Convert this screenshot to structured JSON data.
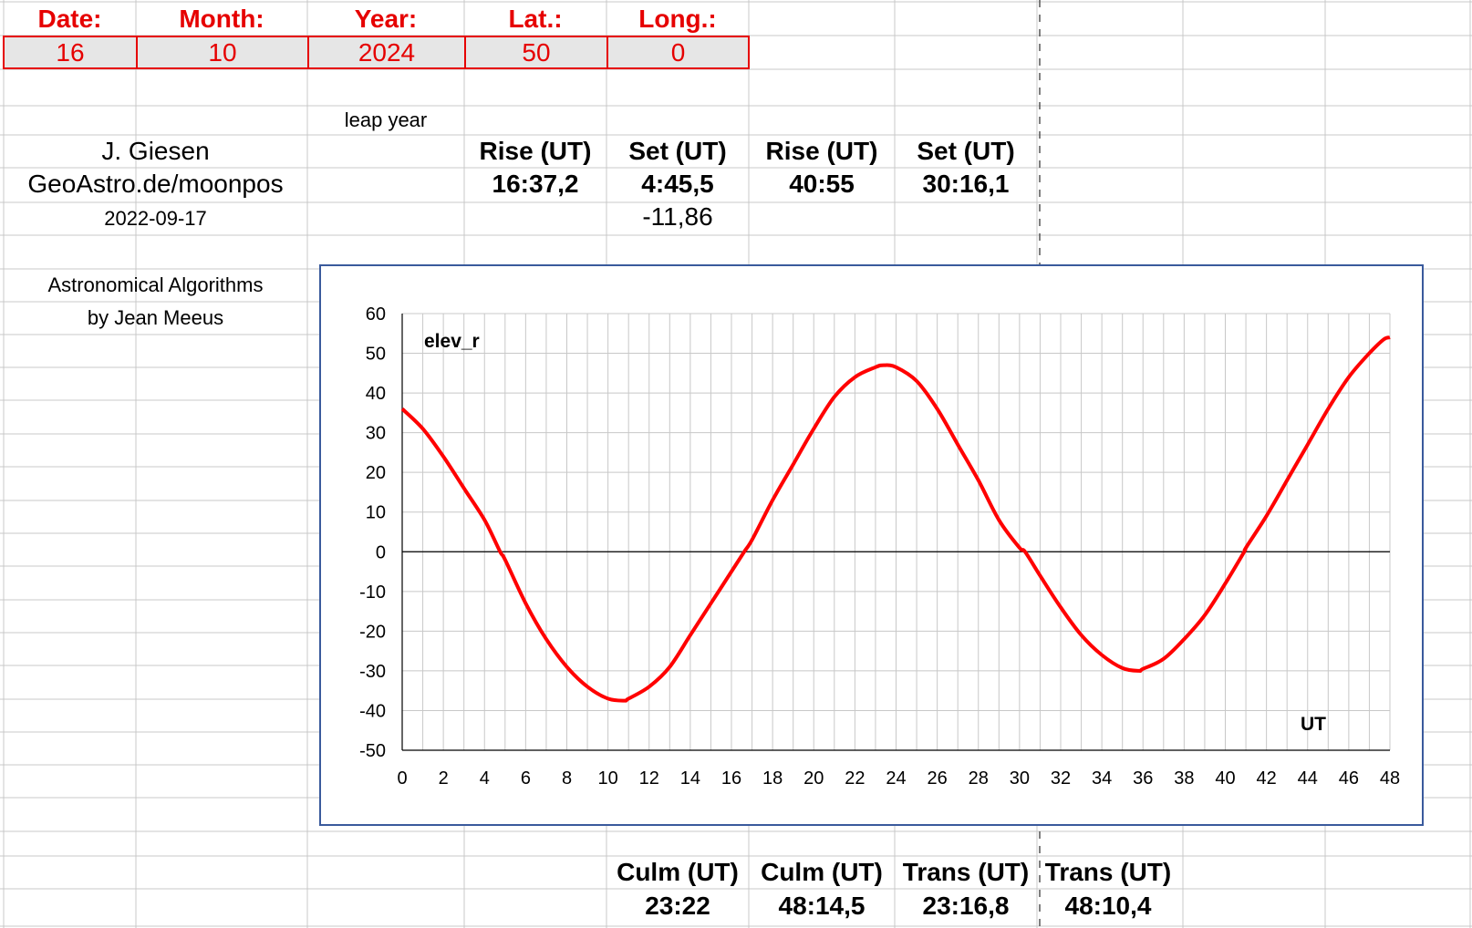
{
  "inputs": {
    "headers": [
      "Date:",
      "Month:",
      "Year:",
      "Lat.:",
      "Long.:"
    ],
    "values": [
      "16",
      "10",
      "2024",
      "50",
      "0"
    ]
  },
  "leap_year_label": "leap year",
  "credits": {
    "author": "J. Giesen",
    "site": "GeoAstro.de/moonpos",
    "date": "2022-09-17",
    "book_line1": "Astronomical Algorithms",
    "book_line2": "by Jean Meeus"
  },
  "rise_set": {
    "headers": [
      "Rise (UT)",
      "Set (UT)",
      "Rise (UT)",
      "Set (UT)"
    ],
    "values": [
      "16:37,2",
      "4:45,5",
      "40:55",
      "30:16,1"
    ],
    "extra": "-11,86"
  },
  "culm_trans": {
    "headers": [
      "Culm (UT)",
      "Culm (UT)",
      "Trans (UT)",
      "Trans (UT)"
    ],
    "values": [
      "23:22",
      "48:14,5",
      "23:16,8",
      "48:10,4"
    ]
  },
  "colors": {
    "header_red": "#e60000",
    "input_fill": "#e6e6e6",
    "curve_red": "#ff0000",
    "chart_border": "#3a5a9c",
    "grid_line": "#c8c8c8"
  },
  "chart_data": {
    "type": "line",
    "title": "elev_r",
    "xlabel": "UT",
    "ylabel": "",
    "xlim": [
      0,
      48
    ],
    "ylim": [
      -50,
      60
    ],
    "xticks": [
      0,
      2,
      4,
      6,
      8,
      10,
      12,
      14,
      16,
      18,
      20,
      22,
      24,
      26,
      28,
      30,
      32,
      34,
      36,
      38,
      40,
      42,
      44,
      46,
      48
    ],
    "yticks": [
      60,
      50,
      40,
      30,
      20,
      10,
      0,
      -10,
      -20,
      -30,
      -40,
      -50
    ],
    "grid": true,
    "series": [
      {
        "color": "#ff0000",
        "x": [
          0,
          1,
          2,
          3,
          4,
          4.76,
          5,
          6,
          7,
          8,
          9,
          10,
          10.8,
          11,
          12,
          13,
          14,
          15,
          16,
          16.62,
          17,
          18,
          19,
          20,
          21,
          22,
          23,
          23.4,
          24,
          25,
          26,
          27,
          28,
          29,
          30,
          30.27,
          31,
          32,
          33,
          34,
          35,
          35.8,
          36,
          37,
          38,
          39,
          40,
          40.92,
          41,
          42,
          43,
          44,
          45,
          46,
          47,
          47.7,
          48
        ],
        "y": [
          36,
          31,
          24,
          16,
          8,
          0,
          -2,
          -13,
          -22,
          -29,
          -34,
          -37,
          -37.5,
          -37,
          -34,
          -29,
          -21,
          -13,
          -5,
          0,
          3,
          13,
          22,
          31,
          39,
          44,
          46.5,
          47,
          46.5,
          43,
          36,
          27,
          18,
          8,
          1,
          0,
          -6,
          -14,
          -21,
          -26,
          -29.3,
          -30,
          -29.5,
          -27,
          -22,
          -16,
          -8,
          0,
          1,
          9,
          18,
          27,
          36,
          44,
          50,
          53.5,
          54
        ]
      }
    ]
  }
}
